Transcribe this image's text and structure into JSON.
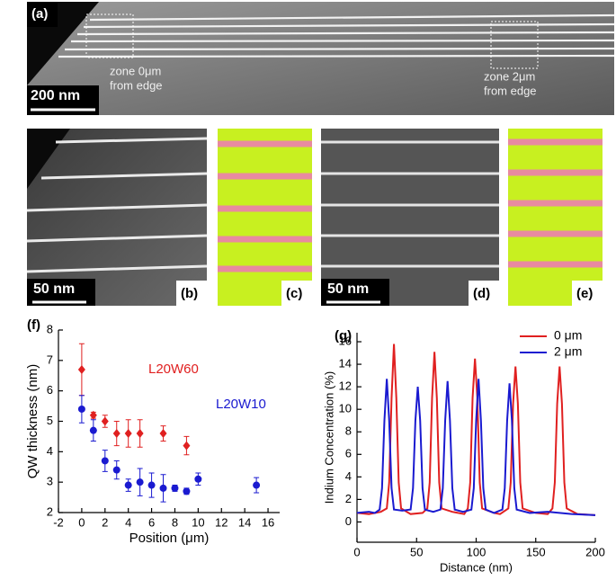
{
  "figure": {
    "a": {
      "label": "(a)",
      "scale": "200 nm",
      "zone_left": [
        "zone 0μm",
        "from edge"
      ],
      "zone_right": [
        "zone 2μm",
        "from edge"
      ]
    },
    "b": {
      "label": "(b)",
      "scale": "50 nm"
    },
    "c": {
      "label": "(c)"
    },
    "d": {
      "label": "(d)",
      "scale": "50 nm"
    },
    "e": {
      "label": "(e)"
    },
    "f": {
      "label": "(f)"
    },
    "g": {
      "label": "(g)"
    }
  },
  "chart_data": [
    {
      "type": "scatter",
      "xlabel": "Position (μm)",
      "ylabel": "QW thickness (nm)",
      "xlim": [
        -2,
        17
      ],
      "xticks": [
        -2,
        0,
        2,
        4,
        6,
        8,
        10,
        12,
        14,
        16
      ],
      "ylim": [
        2,
        8
      ],
      "yticks": [
        2,
        3,
        4,
        5,
        6,
        7,
        8
      ],
      "series": [
        {
          "name": "L20W60",
          "color": "#e02020",
          "marker": "diamond",
          "x": [
            0,
            1,
            2,
            3,
            4,
            5,
            7,
            9
          ],
          "values": [
            6.7,
            5.2,
            5.0,
            4.6,
            4.6,
            4.6,
            4.6,
            4.2
          ],
          "errors": [
            0.85,
            0.1,
            0.2,
            0.4,
            0.45,
            0.45,
            0.25,
            0.3
          ]
        },
        {
          "name": "L20W10",
          "color": "#1a1ad0",
          "marker": "circle",
          "x": [
            0,
            1,
            2,
            3,
            4,
            5,
            6,
            7,
            8,
            9,
            10,
            15
          ],
          "values": [
            5.4,
            4.7,
            3.7,
            3.4,
            2.9,
            3.0,
            2.9,
            2.8,
            2.8,
            2.7,
            3.1,
            2.9
          ],
          "errors": [
            0.45,
            0.35,
            0.35,
            0.3,
            0.2,
            0.45,
            0.4,
            0.45,
            0.1,
            0.1,
            0.2,
            0.25
          ]
        }
      ]
    },
    {
      "type": "line",
      "xlabel": "Distance (nm)",
      "ylabel": "Indium Concentration (%)",
      "xlim": [
        0,
        200
      ],
      "xticks": [
        0,
        50,
        100,
        150,
        200
      ],
      "ylim": [
        -1.8,
        16.8
      ],
      "yticks": [
        0,
        2,
        4,
        6,
        8,
        10,
        12,
        14,
        16
      ],
      "legend": "upper right",
      "series": [
        {
          "name": "0 μm",
          "color": "#e02020",
          "x": [
            0,
            10,
            20,
            25,
            27,
            29,
            31,
            33,
            35,
            37,
            45,
            55,
            59,
            61,
            63,
            65,
            67,
            69,
            71,
            80,
            90,
            93,
            95,
            97,
            99,
            101,
            103,
            105,
            115,
            120,
            127,
            129,
            131,
            133,
            135,
            137,
            139,
            150,
            160,
            164,
            166,
            168,
            170,
            172,
            174,
            176,
            185,
            200
          ],
          "values": [
            0.8,
            0.7,
            0.9,
            1.2,
            3.5,
            11,
            15.8,
            11,
            3.5,
            1.2,
            0.7,
            0.8,
            1.2,
            3.5,
            11,
            15.1,
            11,
            3.5,
            1.2,
            0.9,
            0.7,
            1.2,
            3.5,
            11,
            14.5,
            11,
            3.5,
            1.2,
            0.8,
            0.7,
            1.2,
            3.5,
            10.5,
            13.8,
            10.5,
            3.5,
            1.2,
            0.8,
            0.7,
            1.2,
            3.5,
            10.5,
            13.8,
            10.5,
            3.5,
            1.2,
            0.7,
            0.6
          ]
        },
        {
          "name": "2 μm",
          "color": "#1a1ad0",
          "x": [
            0,
            10,
            15,
            19,
            21,
            23,
            25,
            27,
            29,
            31,
            38,
            45,
            47,
            49,
            51,
            53,
            55,
            57,
            64,
            70,
            72,
            74,
            76,
            78,
            80,
            82,
            89,
            96,
            98,
            100,
            102,
            104,
            106,
            108,
            115,
            122,
            124,
            126,
            128,
            130,
            132,
            134,
            145,
            160,
            180,
            200
          ],
          "values": [
            0.8,
            0.9,
            0.8,
            1.1,
            3,
            9,
            12.7,
            9,
            3,
            1.1,
            1.0,
            1.1,
            3,
            9,
            12.0,
            9,
            3,
            1.1,
            0.9,
            1.1,
            3,
            9,
            12.5,
            9,
            3,
            1.1,
            0.9,
            1.1,
            3,
            9,
            12.7,
            9,
            3,
            1.1,
            0.8,
            1.1,
            3,
            9,
            12.3,
            9,
            3,
            1.1,
            0.8,
            0.9,
            0.7,
            0.6
          ]
        }
      ]
    }
  ]
}
